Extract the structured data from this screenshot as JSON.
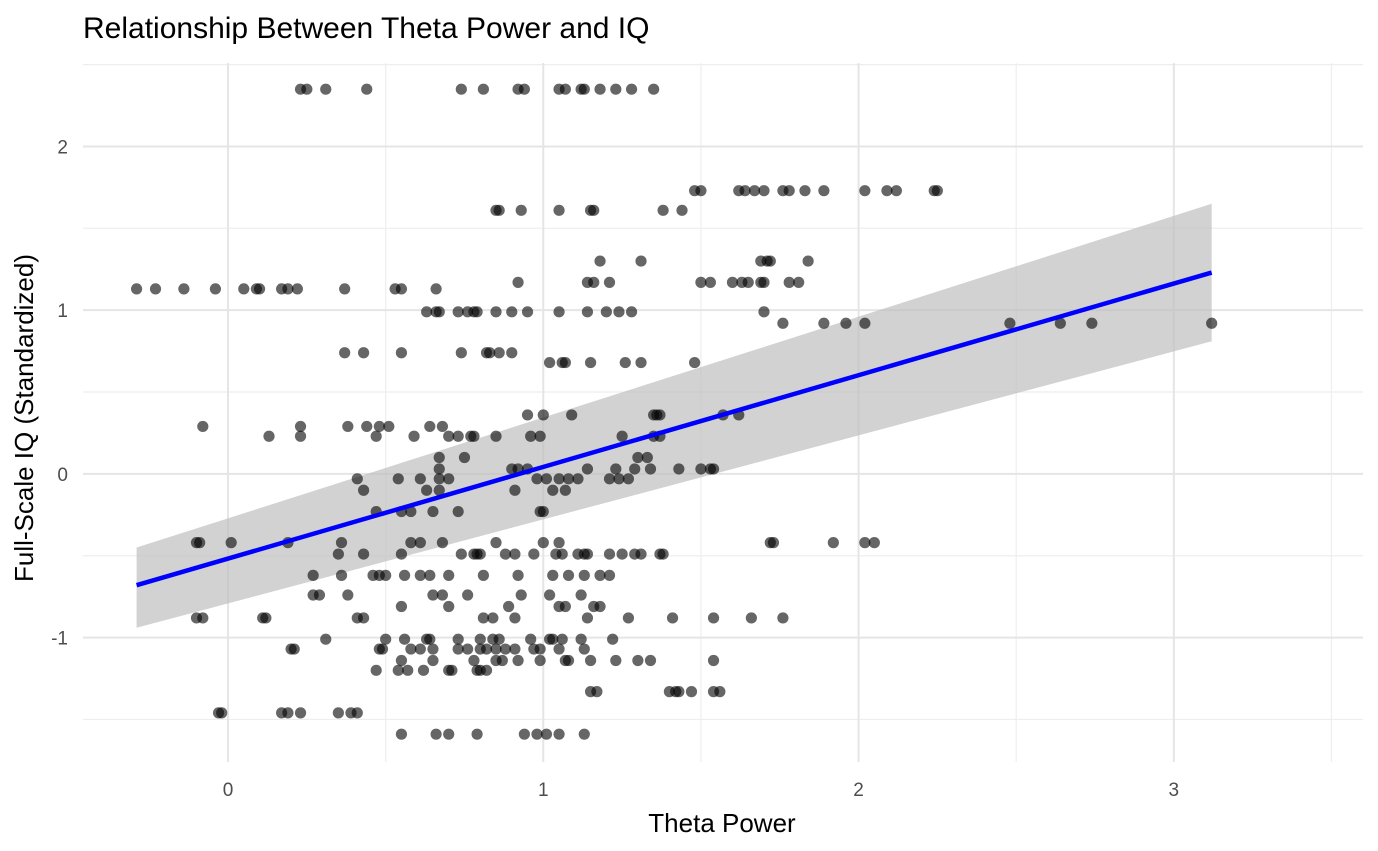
{
  "chart_data": {
    "type": "scatter",
    "title": "Relationship Between Theta Power and IQ",
    "xlabel": "Theta Power",
    "ylabel": "Full-Scale IQ (Standardized)",
    "xlim": [
      -0.46,
      3.6
    ],
    "ylim": [
      -1.76,
      2.51
    ],
    "x_ticks": [
      0,
      1,
      2,
      3
    ],
    "x_tick_labels": [
      "0",
      "1",
      "2",
      "3"
    ],
    "y_ticks": [
      -1,
      0,
      1,
      2
    ],
    "y_tick_labels": [
      "-1",
      "0",
      "1",
      "2"
    ],
    "grid": true,
    "legend": "none",
    "colors": {
      "points": "#000000",
      "points_opacity": 0.6,
      "fit_line": "#0000ff",
      "ribbon": "#bfbfbf",
      "grid": "#e5e5e5"
    },
    "fit": {
      "x": [
        -0.29,
        3.12
      ],
      "y": [
        -0.68,
        1.23
      ],
      "ci_lower": [
        -0.94,
        0.81
      ],
      "ci_upper": [
        -0.45,
        1.65
      ]
    },
    "points": [
      [
        -0.29,
        1.13
      ],
      [
        -0.23,
        1.13
      ],
      [
        -0.14,
        1.13
      ],
      [
        -0.04,
        1.13
      ],
      [
        0.05,
        1.13
      ],
      [
        0.09,
        1.13
      ],
      [
        0.1,
        1.13
      ],
      [
        0.17,
        1.13
      ],
      [
        0.19,
        1.13
      ],
      [
        0.22,
        1.13
      ],
      [
        0.37,
        1.13
      ],
      [
        0.53,
        1.13
      ],
      [
        0.55,
        1.13
      ],
      [
        0.66,
        1.13
      ],
      [
        0.23,
        2.35
      ],
      [
        0.25,
        2.35
      ],
      [
        0.31,
        2.35
      ],
      [
        0.44,
        2.35
      ],
      [
        0.74,
        2.35
      ],
      [
        0.81,
        2.35
      ],
      [
        0.92,
        2.35
      ],
      [
        0.94,
        2.35
      ],
      [
        1.05,
        2.35
      ],
      [
        1.07,
        2.35
      ],
      [
        1.12,
        2.35
      ],
      [
        1.13,
        2.35
      ],
      [
        1.18,
        2.35
      ],
      [
        1.23,
        2.35
      ],
      [
        1.28,
        2.35
      ],
      [
        1.35,
        2.35
      ],
      [
        1.48,
        1.73
      ],
      [
        1.5,
        1.73
      ],
      [
        1.62,
        1.73
      ],
      [
        1.64,
        1.73
      ],
      [
        1.67,
        1.73
      ],
      [
        1.7,
        1.73
      ],
      [
        1.76,
        1.73
      ],
      [
        1.78,
        1.73
      ],
      [
        1.83,
        1.73
      ],
      [
        1.89,
        1.73
      ],
      [
        2.02,
        1.73
      ],
      [
        2.09,
        1.73
      ],
      [
        2.12,
        1.73
      ],
      [
        2.24,
        1.73
      ],
      [
        2.25,
        1.73
      ],
      [
        0.85,
        1.61
      ],
      [
        0.86,
        1.61
      ],
      [
        0.93,
        1.61
      ],
      [
        1.05,
        1.61
      ],
      [
        1.15,
        1.61
      ],
      [
        1.16,
        1.61
      ],
      [
        1.38,
        1.61
      ],
      [
        1.44,
        1.61
      ],
      [
        1.18,
        1.3
      ],
      [
        1.31,
        1.3
      ],
      [
        1.69,
        1.3
      ],
      [
        1.71,
        1.3
      ],
      [
        1.72,
        1.3
      ],
      [
        1.84,
        1.3
      ],
      [
        0.92,
        1.17
      ],
      [
        1.14,
        1.17
      ],
      [
        1.16,
        1.17
      ],
      [
        1.21,
        1.17
      ],
      [
        1.5,
        1.17
      ],
      [
        1.53,
        1.17
      ],
      [
        1.6,
        1.17
      ],
      [
        1.63,
        1.17
      ],
      [
        1.65,
        1.17
      ],
      [
        1.69,
        1.17
      ],
      [
        1.7,
        1.17
      ],
      [
        1.78,
        1.17
      ],
      [
        1.81,
        1.17
      ],
      [
        0.63,
        0.99
      ],
      [
        0.66,
        0.99
      ],
      [
        0.67,
        0.99
      ],
      [
        0.73,
        0.99
      ],
      [
        0.76,
        0.99
      ],
      [
        0.78,
        0.99
      ],
      [
        0.79,
        0.99
      ],
      [
        0.85,
        0.99
      ],
      [
        0.9,
        0.99
      ],
      [
        0.95,
        0.99
      ],
      [
        1.05,
        0.99
      ],
      [
        1.14,
        0.99
      ],
      [
        1.2,
        0.99
      ],
      [
        1.24,
        0.99
      ],
      [
        1.28,
        0.99
      ],
      [
        1.7,
        0.99
      ],
      [
        1.76,
        0.92
      ],
      [
        1.89,
        0.92
      ],
      [
        1.96,
        0.92
      ],
      [
        2.02,
        0.92
      ],
      [
        2.48,
        0.92
      ],
      [
        2.64,
        0.92
      ],
      [
        2.74,
        0.92
      ],
      [
        3.12,
        0.92
      ],
      [
        0.37,
        0.74
      ],
      [
        0.43,
        0.74
      ],
      [
        0.55,
        0.74
      ],
      [
        0.74,
        0.74
      ],
      [
        0.82,
        0.74
      ],
      [
        0.83,
        0.74
      ],
      [
        0.86,
        0.74
      ],
      [
        0.9,
        0.74
      ],
      [
        1.02,
        0.68
      ],
      [
        1.06,
        0.68
      ],
      [
        1.07,
        0.68
      ],
      [
        1.15,
        0.68
      ],
      [
        1.26,
        0.68
      ],
      [
        1.31,
        0.68
      ],
      [
        1.48,
        0.68
      ],
      [
        0.95,
        0.36
      ],
      [
        1.0,
        0.36
      ],
      [
        1.09,
        0.36
      ],
      [
        1.35,
        0.36
      ],
      [
        1.36,
        0.36
      ],
      [
        1.37,
        0.36
      ],
      [
        1.57,
        0.36
      ],
      [
        1.62,
        0.36
      ],
      [
        -0.08,
        0.29
      ],
      [
        0.23,
        0.29
      ],
      [
        0.38,
        0.29
      ],
      [
        0.44,
        0.29
      ],
      [
        0.48,
        0.29
      ],
      [
        0.51,
        0.29
      ],
      [
        0.64,
        0.29
      ],
      [
        0.68,
        0.29
      ],
      [
        0.13,
        0.23
      ],
      [
        0.23,
        0.23
      ],
      [
        0.47,
        0.23
      ],
      [
        0.59,
        0.23
      ],
      [
        0.7,
        0.23
      ],
      [
        0.73,
        0.23
      ],
      [
        0.77,
        0.23
      ],
      [
        0.78,
        0.23
      ],
      [
        0.85,
        0.23
      ],
      [
        0.96,
        0.23
      ],
      [
        0.99,
        0.23
      ],
      [
        1.25,
        0.23
      ],
      [
        1.35,
        0.23
      ],
      [
        1.37,
        0.23
      ],
      [
        0.67,
        0.1
      ],
      [
        0.75,
        0.1
      ],
      [
        1.3,
        0.1
      ],
      [
        1.33,
        0.1
      ],
      [
        0.67,
        0.03
      ],
      [
        0.9,
        0.03
      ],
      [
        0.92,
        0.03
      ],
      [
        0.95,
        0.03
      ],
      [
        1.14,
        0.03
      ],
      [
        1.23,
        0.03
      ],
      [
        1.29,
        0.03
      ],
      [
        1.34,
        0.03
      ],
      [
        1.43,
        0.03
      ],
      [
        1.5,
        0.03
      ],
      [
        1.53,
        0.03
      ],
      [
        1.54,
        0.03
      ],
      [
        0.41,
        -0.03
      ],
      [
        0.54,
        -0.03
      ],
      [
        0.61,
        -0.03
      ],
      [
        0.67,
        -0.03
      ],
      [
        0.7,
        -0.03
      ],
      [
        0.98,
        -0.03
      ],
      [
        1.01,
        -0.03
      ],
      [
        1.05,
        -0.03
      ],
      [
        1.08,
        -0.03
      ],
      [
        1.11,
        -0.03
      ],
      [
        1.21,
        -0.03
      ],
      [
        1.24,
        -0.03
      ],
      [
        1.27,
        -0.03
      ],
      [
        0.43,
        -0.1
      ],
      [
        0.63,
        -0.1
      ],
      [
        0.67,
        -0.1
      ],
      [
        0.91,
        -0.1
      ],
      [
        1.03,
        -0.1
      ],
      [
        1.07,
        -0.1
      ],
      [
        0.47,
        -0.23
      ],
      [
        0.55,
        -0.23
      ],
      [
        0.58,
        -0.23
      ],
      [
        0.65,
        -0.23
      ],
      [
        0.73,
        -0.23
      ],
      [
        0.99,
        -0.23
      ],
      [
        1.0,
        -0.23
      ],
      [
        -0.1,
        -0.42
      ],
      [
        -0.09,
        -0.42
      ],
      [
        0.01,
        -0.42
      ],
      [
        0.19,
        -0.42
      ],
      [
        0.36,
        -0.42
      ],
      [
        0.58,
        -0.42
      ],
      [
        0.61,
        -0.42
      ],
      [
        0.68,
        -0.42
      ],
      [
        0.85,
        -0.42
      ],
      [
        1.0,
        -0.42
      ],
      [
        1.05,
        -0.42
      ],
      [
        1.72,
        -0.42
      ],
      [
        1.73,
        -0.42
      ],
      [
        1.92,
        -0.42
      ],
      [
        2.02,
        -0.42
      ],
      [
        2.05,
        -0.42
      ],
      [
        0.35,
        -0.49
      ],
      [
        0.43,
        -0.49
      ],
      [
        0.55,
        -0.49
      ],
      [
        0.74,
        -0.49
      ],
      [
        0.78,
        -0.49
      ],
      [
        0.79,
        -0.49
      ],
      [
        0.8,
        -0.49
      ],
      [
        0.88,
        -0.49
      ],
      [
        0.91,
        -0.49
      ],
      [
        0.97,
        -0.49
      ],
      [
        1.04,
        -0.49
      ],
      [
        1.06,
        -0.49
      ],
      [
        1.11,
        -0.49
      ],
      [
        1.13,
        -0.49
      ],
      [
        1.14,
        -0.49
      ],
      [
        1.21,
        -0.49
      ],
      [
        1.25,
        -0.49
      ],
      [
        1.29,
        -0.49
      ],
      [
        1.31,
        -0.49
      ],
      [
        1.37,
        -0.49
      ],
      [
        1.38,
        -0.49
      ],
      [
        0.27,
        -0.62
      ],
      [
        0.36,
        -0.62
      ],
      [
        0.46,
        -0.62
      ],
      [
        0.48,
        -0.62
      ],
      [
        0.5,
        -0.62
      ],
      [
        0.56,
        -0.62
      ],
      [
        0.61,
        -0.62
      ],
      [
        0.64,
        -0.62
      ],
      [
        0.7,
        -0.62
      ],
      [
        0.81,
        -0.62
      ],
      [
        0.92,
        -0.62
      ],
      [
        1.03,
        -0.62
      ],
      [
        1.08,
        -0.62
      ],
      [
        1.13,
        -0.62
      ],
      [
        1.18,
        -0.62
      ],
      [
        1.21,
        -0.62
      ],
      [
        0.27,
        -0.74
      ],
      [
        0.29,
        -0.74
      ],
      [
        0.38,
        -0.74
      ],
      [
        0.65,
        -0.74
      ],
      [
        0.68,
        -0.74
      ],
      [
        0.76,
        -0.74
      ],
      [
        0.93,
        -0.74
      ],
      [
        1.02,
        -0.74
      ],
      [
        1.12,
        -0.74
      ],
      [
        0.55,
        -0.81
      ],
      [
        0.7,
        -0.81
      ],
      [
        0.89,
        -0.81
      ],
      [
        1.05,
        -0.81
      ],
      [
        1.07,
        -0.81
      ],
      [
        1.16,
        -0.81
      ],
      [
        1.18,
        -0.81
      ],
      [
        -0.1,
        -0.88
      ],
      [
        -0.08,
        -0.88
      ],
      [
        0.11,
        -0.88
      ],
      [
        0.12,
        -0.88
      ],
      [
        0.41,
        -0.88
      ],
      [
        0.43,
        -0.88
      ],
      [
        0.81,
        -0.88
      ],
      [
        0.84,
        -0.88
      ],
      [
        0.91,
        -0.88
      ],
      [
        1.14,
        -0.88
      ],
      [
        1.27,
        -0.88
      ],
      [
        1.41,
        -0.88
      ],
      [
        1.54,
        -0.88
      ],
      [
        1.66,
        -0.88
      ],
      [
        1.76,
        -0.88
      ],
      [
        0.31,
        -1.01
      ],
      [
        0.5,
        -1.01
      ],
      [
        0.56,
        -1.01
      ],
      [
        0.63,
        -1.01
      ],
      [
        0.64,
        -1.01
      ],
      [
        0.73,
        -1.01
      ],
      [
        0.8,
        -1.01
      ],
      [
        0.84,
        -1.01
      ],
      [
        0.86,
        -1.01
      ],
      [
        0.96,
        -1.01
      ],
      [
        1.02,
        -1.01
      ],
      [
        1.03,
        -1.01
      ],
      [
        1.06,
        -1.01
      ],
      [
        1.12,
        -1.01
      ],
      [
        1.22,
        -1.01
      ],
      [
        0.2,
        -1.07
      ],
      [
        0.21,
        -1.07
      ],
      [
        0.48,
        -1.07
      ],
      [
        0.49,
        -1.07
      ],
      [
        0.58,
        -1.07
      ],
      [
        0.61,
        -1.07
      ],
      [
        0.65,
        -1.07
      ],
      [
        0.73,
        -1.07
      ],
      [
        0.76,
        -1.07
      ],
      [
        0.8,
        -1.07
      ],
      [
        0.82,
        -1.07
      ],
      [
        0.85,
        -1.07
      ],
      [
        0.88,
        -1.07
      ],
      [
        0.91,
        -1.07
      ],
      [
        0.97,
        -1.07
      ],
      [
        0.99,
        -1.07
      ],
      [
        1.05,
        -1.07
      ],
      [
        1.13,
        -1.07
      ],
      [
        0.55,
        -1.14
      ],
      [
        0.65,
        -1.14
      ],
      [
        0.78,
        -1.14
      ],
      [
        0.85,
        -1.14
      ],
      [
        0.87,
        -1.14
      ],
      [
        0.92,
        -1.14
      ],
      [
        0.99,
        -1.14
      ],
      [
        1.07,
        -1.14
      ],
      [
        1.08,
        -1.14
      ],
      [
        1.15,
        -1.14
      ],
      [
        1.23,
        -1.14
      ],
      [
        1.3,
        -1.14
      ],
      [
        1.34,
        -1.14
      ],
      [
        1.54,
        -1.14
      ],
      [
        0.47,
        -1.2
      ],
      [
        0.54,
        -1.2
      ],
      [
        0.57,
        -1.2
      ],
      [
        0.62,
        -1.2
      ],
      [
        0.7,
        -1.2
      ],
      [
        0.71,
        -1.2
      ],
      [
        0.79,
        -1.2
      ],
      [
        0.8,
        -1.2
      ],
      [
        0.82,
        -1.2
      ],
      [
        1.15,
        -1.33
      ],
      [
        1.17,
        -1.33
      ],
      [
        1.4,
        -1.33
      ],
      [
        1.42,
        -1.33
      ],
      [
        1.43,
        -1.33
      ],
      [
        1.47,
        -1.33
      ],
      [
        1.54,
        -1.33
      ],
      [
        1.56,
        -1.33
      ],
      [
        -0.03,
        -1.46
      ],
      [
        -0.02,
        -1.46
      ],
      [
        0.17,
        -1.46
      ],
      [
        0.19,
        -1.46
      ],
      [
        0.23,
        -1.46
      ],
      [
        0.35,
        -1.46
      ],
      [
        0.39,
        -1.46
      ],
      [
        0.41,
        -1.46
      ],
      [
        0.55,
        -1.59
      ],
      [
        0.66,
        -1.59
      ],
      [
        0.7,
        -1.59
      ],
      [
        0.79,
        -1.59
      ],
      [
        0.94,
        -1.59
      ],
      [
        0.98,
        -1.59
      ],
      [
        1.01,
        -1.59
      ],
      [
        1.05,
        -1.59
      ],
      [
        1.13,
        -1.59
      ]
    ]
  }
}
